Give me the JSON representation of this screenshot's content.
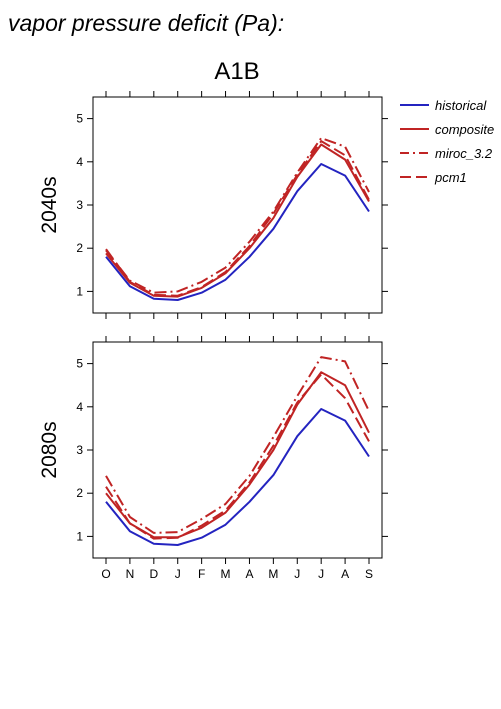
{
  "figure": {
    "title": "vapor pressure deficit (Pa):",
    "scenario": "A1B"
  },
  "legend": [
    {
      "name": "historical",
      "color": "#2424c0",
      "dash": "solid"
    },
    {
      "name": "composite",
      "color": "#c02424",
      "dash": "solid"
    },
    {
      "name": "miroc_3.2",
      "color": "#c02424",
      "dash": "dashdot"
    },
    {
      "name": "pcm1",
      "color": "#c02424",
      "dash": "dashed"
    }
  ],
  "chart_data": [
    {
      "type": "line",
      "panel_label": "2040s",
      "categories": [
        "O",
        "N",
        "D",
        "J",
        "F",
        "M",
        "A",
        "M",
        "J",
        "J",
        "A",
        "S"
      ],
      "ylim": [
        0.5,
        5.5
      ],
      "yticks": [
        1,
        2,
        3,
        4,
        5
      ],
      "series": [
        {
          "name": "historical",
          "values": [
            1.8,
            1.12,
            0.83,
            0.8,
            0.97,
            1.27,
            1.8,
            2.45,
            3.32,
            3.95,
            3.68,
            2.85
          ]
        },
        {
          "name": "composite",
          "values": [
            1.88,
            1.2,
            0.9,
            0.88,
            1.08,
            1.42,
            2.0,
            2.7,
            3.65,
            4.4,
            4.05,
            3.08
          ]
        },
        {
          "name": "miroc_3.2",
          "values": [
            1.95,
            1.25,
            0.97,
            1.0,
            1.22,
            1.55,
            2.15,
            2.85,
            3.75,
            4.55,
            4.35,
            3.3
          ]
        },
        {
          "name": "pcm1",
          "values": [
            1.98,
            1.22,
            0.92,
            0.9,
            1.1,
            1.45,
            2.05,
            2.8,
            3.7,
            4.48,
            4.15,
            3.12
          ]
        }
      ]
    },
    {
      "type": "line",
      "panel_label": "2080s",
      "categories": [
        "O",
        "N",
        "D",
        "J",
        "F",
        "M",
        "A",
        "M",
        "J",
        "J",
        "A",
        "S"
      ],
      "ylim": [
        0.5,
        5.5
      ],
      "yticks": [
        1,
        2,
        3,
        4,
        5
      ],
      "series": [
        {
          "name": "historical",
          "values": [
            1.8,
            1.12,
            0.83,
            0.8,
            0.97,
            1.27,
            1.8,
            2.42,
            3.32,
            3.95,
            3.68,
            2.85
          ]
        },
        {
          "name": "composite",
          "values": [
            2.0,
            1.3,
            0.98,
            0.98,
            1.2,
            1.55,
            2.2,
            3.0,
            4.05,
            4.8,
            4.5,
            3.4
          ]
        },
        {
          "name": "miroc_3.2",
          "values": [
            2.4,
            1.45,
            1.08,
            1.1,
            1.4,
            1.75,
            2.4,
            3.3,
            4.25,
            5.15,
            5.05,
            3.9
          ]
        },
        {
          "name": "pcm1",
          "values": [
            2.15,
            1.3,
            0.95,
            0.97,
            1.25,
            1.6,
            2.25,
            3.1,
            4.1,
            4.75,
            4.2,
            3.2
          ]
        }
      ]
    }
  ]
}
